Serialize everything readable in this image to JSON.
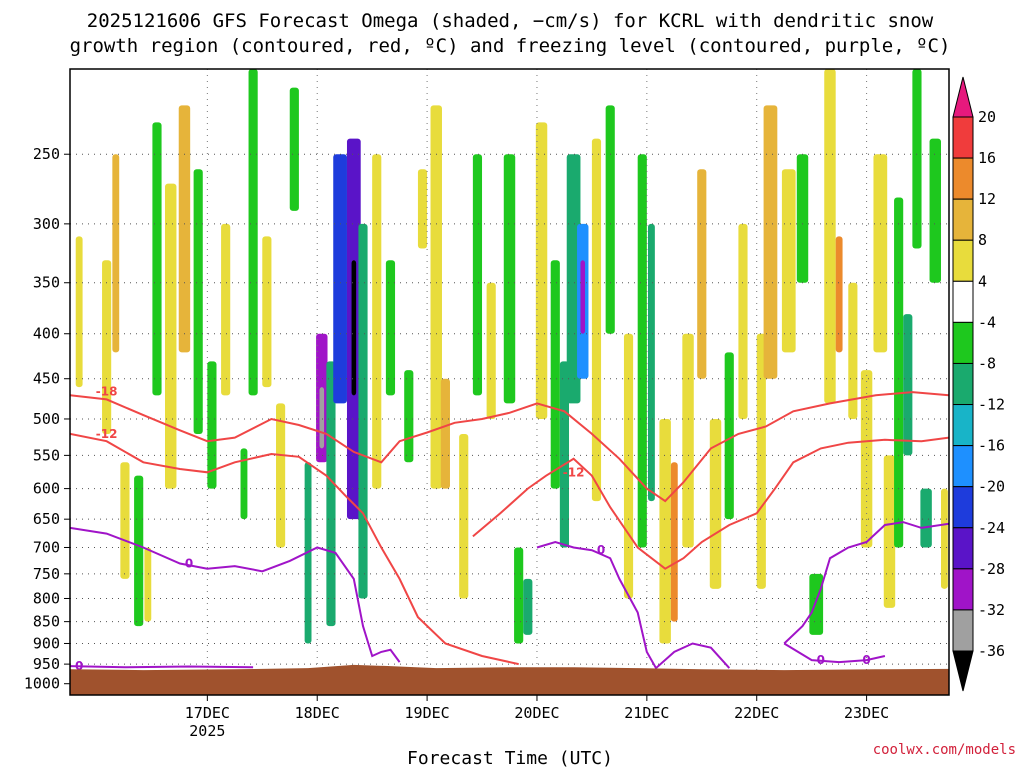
{
  "chart_data": {
    "type": "heatmap",
    "title_lines": [
      "2025121606 GFS Forecast Omega (shaded, −cm/s) for KCRL with dendritic snow",
      "growth region (contoured, red, ºC) and freezing level (contoured, purple, ºC)"
    ],
    "xlabel": "Forecast Time (UTC)",
    "credit": "coolwx.com/models",
    "x_ticks": [
      {
        "label": "17DEC",
        "t": 24,
        "sub": "2025"
      },
      {
        "label": "18DEC",
        "t": 48,
        "sub": ""
      },
      {
        "label": "19DEC",
        "t": 72,
        "sub": ""
      },
      {
        "label": "20DEC",
        "t": 96,
        "sub": ""
      },
      {
        "label": "21DEC",
        "t": 120,
        "sub": ""
      },
      {
        "label": "22DEC",
        "t": 144,
        "sub": ""
      },
      {
        "label": "23DEC",
        "t": 168,
        "sub": ""
      }
    ],
    "x_range_hours": [
      -6,
      186
    ],
    "y_ticks": [
      250,
      300,
      350,
      400,
      450,
      500,
      550,
      600,
      650,
      700,
      750,
      800,
      850,
      900,
      950,
      1000
    ],
    "y_range_hpa": [
      200,
      1030
    ],
    "y_scale": "log",
    "colorbar": {
      "ticks": [
        20,
        16,
        12,
        8,
        4,
        -4,
        -8,
        -12,
        -16,
        -20,
        -24,
        -28,
        -32,
        -36
      ],
      "bins": [
        {
          "range": [
            16,
            20
          ],
          "color": "#f03c3c"
        },
        {
          "range": [
            12,
            16
          ],
          "color": "#ec8a2c"
        },
        {
          "range": [
            8,
            12
          ],
          "color": "#e6b43a"
        },
        {
          "range": [
            4,
            8
          ],
          "color": "#e8dc3c"
        },
        {
          "range": [
            -4,
            4
          ],
          "color": "#ffffff"
        },
        {
          "range": [
            -8,
            -4
          ],
          "color": "#1ec81e"
        },
        {
          "range": [
            -12,
            -8
          ],
          "color": "#1aaa6e"
        },
        {
          "range": [
            -16,
            -12
          ],
          "color": "#18b4c8"
        },
        {
          "range": [
            -20,
            -16
          ],
          "color": "#1e90ff"
        },
        {
          "range": [
            -24,
            -20
          ],
          "color": "#1e3cdc"
        },
        {
          "range": [
            -28,
            -24
          ],
          "color": "#5a14c8"
        },
        {
          "range": [
            -32,
            -28
          ],
          "color": "#a014c8"
        },
        {
          "range": [
            -36,
            -32
          ],
          "color": "#a0a0a0"
        }
      ],
      "top_arrow_color": "#e6197d",
      "bottom_arrow_color": "#000000"
    },
    "omega_patches": [
      {
        "t": -4,
        "p1": 310,
        "p2": 460,
        "w": 1.5,
        "v": 6
      },
      {
        "t": 2,
        "p1": 330,
        "p2": 520,
        "w": 2,
        "v": 6
      },
      {
        "t": 4,
        "p1": 250,
        "p2": 420,
        "w": 1.5,
        "v": 10
      },
      {
        "t": 6,
        "p1": 560,
        "p2": 760,
        "w": 2,
        "v": 5
      },
      {
        "t": 9,
        "p1": 580,
        "p2": 860,
        "w": 2,
        "v": -6
      },
      {
        "t": 11,
        "p1": 700,
        "p2": 850,
        "w": 1.5,
        "v": 6
      },
      {
        "t": 13,
        "p1": 230,
        "p2": 470,
        "w": 2,
        "v": -6
      },
      {
        "t": 16,
        "p1": 270,
        "p2": 600,
        "w": 2.5,
        "v": 6
      },
      {
        "t": 19,
        "p1": 220,
        "p2": 420,
        "w": 2.5,
        "v": 10
      },
      {
        "t": 22,
        "p1": 260,
        "p2": 520,
        "w": 2,
        "v": -6
      },
      {
        "t": 25,
        "p1": 430,
        "p2": 600,
        "w": 2,
        "v": -6
      },
      {
        "t": 28,
        "p1": 300,
        "p2": 470,
        "w": 2,
        "v": 6
      },
      {
        "t": 32,
        "p1": 540,
        "p2": 650,
        "w": 1.5,
        "v": -6
      },
      {
        "t": 34,
        "p1": 200,
        "p2": 470,
        "w": 2,
        "v": -6
      },
      {
        "t": 37,
        "p1": 310,
        "p2": 460,
        "w": 2,
        "v": 6
      },
      {
        "t": 40,
        "p1": 480,
        "p2": 700,
        "w": 2,
        "v": 6
      },
      {
        "t": 43,
        "p1": 210,
        "p2": 290,
        "w": 2,
        "v": -6
      },
      {
        "t": 46,
        "p1": 560,
        "p2": 900,
        "w": 1.5,
        "v": -10
      },
      {
        "t": 49,
        "p1": 400,
        "p2": 560,
        "w": 2.5,
        "v": -30
      },
      {
        "t": 49,
        "p1": 460,
        "p2": 540,
        "w": 1,
        "v": -34
      },
      {
        "t": 51,
        "p1": 430,
        "p2": 860,
        "w": 2,
        "v": -10
      },
      {
        "t": 53,
        "p1": 250,
        "p2": 480,
        "w": 3,
        "v": -22
      },
      {
        "t": 56,
        "p1": 240,
        "p2": 650,
        "w": 3,
        "v": -26
      },
      {
        "t": 56,
        "p1": 330,
        "p2": 470,
        "w": 1,
        "v": -40
      },
      {
        "t": 58,
        "p1": 300,
        "p2": 800,
        "w": 2,
        "v": -10
      },
      {
        "t": 61,
        "p1": 250,
        "p2": 600,
        "w": 2,
        "v": 6
      },
      {
        "t": 64,
        "p1": 330,
        "p2": 470,
        "w": 2,
        "v": -6
      },
      {
        "t": 68,
        "p1": 440,
        "p2": 560,
        "w": 2,
        "v": -6
      },
      {
        "t": 71,
        "p1": 260,
        "p2": 320,
        "w": 2,
        "v": 6
      },
      {
        "t": 74,
        "p1": 220,
        "p2": 600,
        "w": 2.5,
        "v": 6
      },
      {
        "t": 76,
        "p1": 450,
        "p2": 600,
        "w": 2,
        "v": 10
      },
      {
        "t": 80,
        "p1": 520,
        "p2": 800,
        "w": 2,
        "v": 6
      },
      {
        "t": 83,
        "p1": 250,
        "p2": 470,
        "w": 2,
        "v": -6
      },
      {
        "t": 86,
        "p1": 350,
        "p2": 500,
        "w": 2,
        "v": 6
      },
      {
        "t": 90,
        "p1": 250,
        "p2": 480,
        "w": 2.5,
        "v": -6
      },
      {
        "t": 92,
        "p1": 700,
        "p2": 900,
        "w": 2,
        "v": -6
      },
      {
        "t": 94,
        "p1": 760,
        "p2": 880,
        "w": 2,
        "v": -10
      },
      {
        "t": 97,
        "p1": 230,
        "p2": 500,
        "w": 2.5,
        "v": 6
      },
      {
        "t": 100,
        "p1": 330,
        "p2": 600,
        "w": 2,
        "v": -6
      },
      {
        "t": 102,
        "p1": 430,
        "p2": 700,
        "w": 2,
        "v": -10
      },
      {
        "t": 104,
        "p1": 250,
        "p2": 480,
        "w": 3,
        "v": -10
      },
      {
        "t": 106,
        "p1": 300,
        "p2": 450,
        "w": 2.5,
        "v": -20
      },
      {
        "t": 106,
        "p1": 330,
        "p2": 400,
        "w": 1,
        "v": -30
      },
      {
        "t": 109,
        "p1": 240,
        "p2": 620,
        "w": 2,
        "v": 6
      },
      {
        "t": 112,
        "p1": 220,
        "p2": 400,
        "w": 2,
        "v": -6
      },
      {
        "t": 116,
        "p1": 400,
        "p2": 800,
        "w": 2,
        "v": 6
      },
      {
        "t": 119,
        "p1": 250,
        "p2": 700,
        "w": 2,
        "v": -6
      },
      {
        "t": 121,
        "p1": 300,
        "p2": 620,
        "w": 1.5,
        "v": -10
      },
      {
        "t": 124,
        "p1": 500,
        "p2": 900,
        "w": 2.5,
        "v": 6
      },
      {
        "t": 126,
        "p1": 560,
        "p2": 850,
        "w": 1.5,
        "v": 14
      },
      {
        "t": 129,
        "p1": 400,
        "p2": 700,
        "w": 2.5,
        "v": 6
      },
      {
        "t": 132,
        "p1": 260,
        "p2": 450,
        "w": 2,
        "v": 10
      },
      {
        "t": 135,
        "p1": 500,
        "p2": 780,
        "w": 2.5,
        "v": 6
      },
      {
        "t": 138,
        "p1": 420,
        "p2": 650,
        "w": 2,
        "v": -6
      },
      {
        "t": 141,
        "p1": 300,
        "p2": 500,
        "w": 2,
        "v": 6
      },
      {
        "t": 145,
        "p1": 400,
        "p2": 780,
        "w": 2,
        "v": 6
      },
      {
        "t": 147,
        "p1": 220,
        "p2": 450,
        "w": 3,
        "v": 10
      },
      {
        "t": 151,
        "p1": 260,
        "p2": 420,
        "w": 3,
        "v": 6
      },
      {
        "t": 154,
        "p1": 250,
        "p2": 350,
        "w": 2.5,
        "v": -6
      },
      {
        "t": 157,
        "p1": 750,
        "p2": 880,
        "w": 3,
        "v": -6
      },
      {
        "t": 160,
        "p1": 200,
        "p2": 480,
        "w": 2.5,
        "v": 6
      },
      {
        "t": 162,
        "p1": 310,
        "p2": 420,
        "w": 1.5,
        "v": 14
      },
      {
        "t": 165,
        "p1": 350,
        "p2": 500,
        "w": 2,
        "v": 6
      },
      {
        "t": 168,
        "p1": 440,
        "p2": 700,
        "w": 2.5,
        "v": 6
      },
      {
        "t": 171,
        "p1": 250,
        "p2": 420,
        "w": 3,
        "v": 6
      },
      {
        "t": 173,
        "p1": 550,
        "p2": 820,
        "w": 2.5,
        "v": 6
      },
      {
        "t": 175,
        "p1": 280,
        "p2": 700,
        "w": 2,
        "v": -6
      },
      {
        "t": 177,
        "p1": 380,
        "p2": 550,
        "w": 2,
        "v": -10
      },
      {
        "t": 179,
        "p1": 200,
        "p2": 320,
        "w": 2,
        "v": -6
      },
      {
        "t": 181,
        "p1": 600,
        "p2": 700,
        "w": 2.5,
        "v": -10
      },
      {
        "t": 183,
        "p1": 240,
        "p2": 350,
        "w": 2.5,
        "v": -6
      },
      {
        "t": 185,
        "p1": 600,
        "p2": 780,
        "w": 1.5,
        "v": 6
      }
    ],
    "contours": [
      {
        "level": -18,
        "color": "#f04646",
        "label_at": [
          2,
          465
        ],
        "points": [
          [
            -6,
            470
          ],
          [
            2,
            475
          ],
          [
            10,
            495
          ],
          [
            18,
            515
          ],
          [
            24,
            530
          ],
          [
            30,
            525
          ],
          [
            38,
            500
          ],
          [
            44,
            508
          ],
          [
            50,
            520
          ],
          [
            56,
            545
          ],
          [
            62,
            560
          ],
          [
            66,
            530
          ],
          [
            72,
            518
          ],
          [
            78,
            505
          ],
          [
            84,
            500
          ],
          [
            90,
            492
          ],
          [
            96,
            480
          ],
          [
            102,
            490
          ],
          [
            108,
            520
          ],
          [
            114,
            555
          ],
          [
            120,
            600
          ],
          [
            124,
            620
          ],
          [
            128,
            590
          ],
          [
            134,
            540
          ],
          [
            140,
            520
          ],
          [
            146,
            510
          ],
          [
            152,
            490
          ],
          [
            160,
            480
          ],
          [
            170,
            470
          ],
          [
            178,
            466
          ],
          [
            186,
            470
          ]
        ]
      },
      {
        "level": -12,
        "color": "#f04646",
        "label_at": [
          2,
          520
        ],
        "points": [
          [
            -6,
            520
          ],
          [
            2,
            530
          ],
          [
            10,
            560
          ],
          [
            18,
            570
          ],
          [
            24,
            575
          ],
          [
            30,
            560
          ],
          [
            38,
            548
          ],
          [
            44,
            552
          ],
          [
            50,
            580
          ],
          [
            54,
            610
          ],
          [
            58,
            640
          ],
          [
            62,
            700
          ],
          [
            66,
            760
          ],
          [
            70,
            840
          ],
          [
            76,
            900
          ],
          [
            84,
            930
          ],
          [
            92,
            950
          ]
        ]
      },
      {
        "level": -12,
        "color": "#f04646",
        "label_at": [
          104,
          575
        ],
        "points": [
          [
            82,
            680
          ],
          [
            88,
            640
          ],
          [
            94,
            600
          ],
          [
            98,
            580
          ],
          [
            104,
            555
          ],
          [
            108,
            580
          ],
          [
            112,
            630
          ],
          [
            118,
            700
          ],
          [
            124,
            740
          ],
          [
            128,
            720
          ],
          [
            132,
            690
          ],
          [
            138,
            660
          ],
          [
            144,
            640
          ],
          [
            148,
            600
          ],
          [
            152,
            560
          ],
          [
            158,
            540
          ],
          [
            164,
            532
          ],
          [
            172,
            528
          ],
          [
            180,
            530
          ],
          [
            186,
            525
          ]
        ]
      },
      {
        "level": 0,
        "color": "#a014c8",
        "label_at": [
          20,
          730
        ],
        "points": [
          [
            -6,
            665
          ],
          [
            2,
            675
          ],
          [
            10,
            700
          ],
          [
            18,
            730
          ],
          [
            24,
            740
          ],
          [
            30,
            735
          ],
          [
            36,
            745
          ],
          [
            42,
            725
          ],
          [
            48,
            700
          ],
          [
            52,
            710
          ],
          [
            56,
            760
          ],
          [
            58,
            860
          ],
          [
            60,
            930
          ],
          [
            62,
            920
          ],
          [
            64,
            915
          ],
          [
            66,
            945
          ]
        ]
      },
      {
        "level": 0,
        "color": "#a014c8",
        "label_at": [
          110,
          705
        ],
        "points": [
          [
            96,
            700
          ],
          [
            100,
            690
          ],
          [
            104,
            700
          ],
          [
            108,
            705
          ],
          [
            112,
            720
          ],
          [
            114,
            760
          ],
          [
            118,
            830
          ],
          [
            120,
            920
          ],
          [
            122,
            960
          ],
          [
            126,
            920
          ],
          [
            130,
            900
          ],
          [
            134,
            910
          ],
          [
            138,
            960
          ]
        ]
      },
      {
        "level": 0,
        "color": "#a014c8",
        "label_at": [
          158,
          940
        ],
        "points": [
          [
            150,
            900
          ],
          [
            154,
            860
          ],
          [
            156,
            830
          ],
          [
            158,
            780
          ],
          [
            160,
            720
          ],
          [
            164,
            700
          ],
          [
            168,
            690
          ],
          [
            172,
            660
          ],
          [
            176,
            655
          ],
          [
            180,
            665
          ],
          [
            186,
            658
          ]
        ]
      },
      {
        "level": 0,
        "color": "#a014c8",
        "label_at": [
          168,
          940
        ],
        "points": [
          [
            150,
            900
          ],
          [
            156,
            940
          ],
          [
            162,
            945
          ],
          [
            168,
            940
          ],
          [
            172,
            930
          ]
        ]
      },
      {
        "level": 0,
        "color": "#a014c8",
        "label_at": [
          -4,
          955
        ],
        "points": [
          [
            -6,
            955
          ],
          [
            6,
            958
          ],
          [
            20,
            956
          ],
          [
            34,
            958
          ]
        ]
      }
    ],
    "contour_label_text": {
      "-18": "-18",
      "-12": "-12",
      "0": "0"
    },
    "terrain": {
      "color": "#a0522d",
      "surface_hpa": [
        [
          -6,
          963
        ],
        [
          10,
          965
        ],
        [
          30,
          963
        ],
        [
          46,
          960
        ],
        [
          56,
          952
        ],
        [
          64,
          955
        ],
        [
          74,
          960
        ],
        [
          90,
          958
        ],
        [
          104,
          958
        ],
        [
          118,
          960
        ],
        [
          132,
          963
        ],
        [
          150,
          965
        ],
        [
          170,
          963
        ],
        [
          186,
          962
        ]
      ]
    }
  }
}
